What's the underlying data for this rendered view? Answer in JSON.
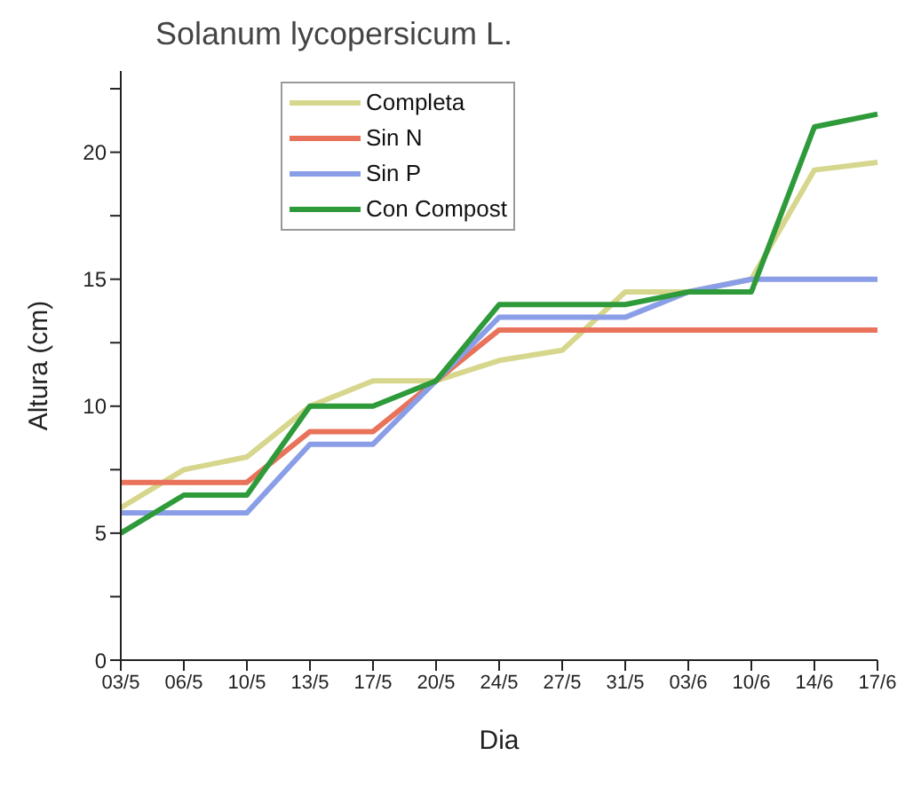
{
  "chart_data": {
    "type": "line",
    "title": "Solanum lycopersicum L.",
    "xlabel": "Dia",
    "ylabel": "Altura (cm)",
    "categories": [
      "03/5",
      "06/5",
      "10/5",
      "13/5",
      "17/5",
      "20/5",
      "24/5",
      "27/5",
      "31/5",
      "03/6",
      "10/6",
      "14/6",
      "17/6"
    ],
    "series": [
      {
        "name": "Completa",
        "color": "#d6d68c",
        "values": [
          6,
          7.5,
          8,
          10,
          11,
          11,
          11.8,
          12.2,
          14.5,
          14.5,
          15,
          19.3,
          19.6
        ]
      },
      {
        "name": "Sin N",
        "color": "#e8735a",
        "values": [
          7,
          7,
          7,
          9,
          9,
          11,
          13,
          13,
          13,
          13,
          13,
          13,
          13
        ]
      },
      {
        "name": "Sin P",
        "color": "#8a9ee8",
        "values": [
          5.8,
          5.8,
          5.8,
          8.5,
          8.5,
          11,
          13.5,
          13.5,
          13.5,
          14.5,
          15,
          15,
          15
        ]
      },
      {
        "name": "Con Compost",
        "color": "#2e9a3a",
        "values": [
          5,
          6.5,
          6.5,
          10,
          10,
          11,
          14,
          14,
          14,
          14.5,
          14.5,
          21,
          21.5
        ]
      }
    ],
    "ylim": [
      0,
      23.2
    ],
    "yticks": [
      0,
      {
        "value": 2.5,
        "label": null
      },
      5,
      {
        "value": 7.5,
        "label": null
      },
      10,
      {
        "value": 12.5,
        "label": null
      },
      15,
      {
        "value": 17.5,
        "label": null
      },
      20,
      {
        "value": 22.5,
        "label": null
      }
    ],
    "grid": false,
    "legend": "top left",
    "marker": "none",
    "line_style": "solid"
  }
}
